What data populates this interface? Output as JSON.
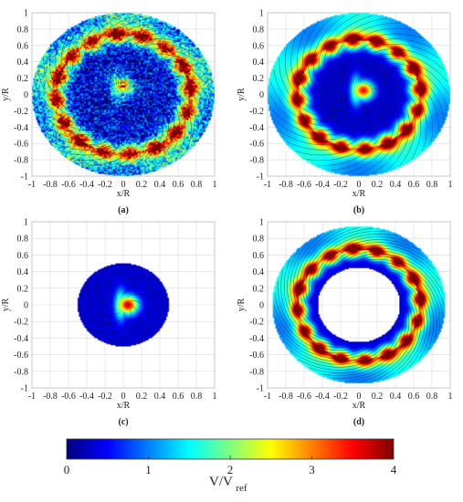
{
  "chart_data": [
    {
      "type": "heatmap",
      "panel": "(a)",
      "xlabel": "x/R",
      "ylabel": "y/R",
      "xlim": [
        -1,
        1
      ],
      "ylim": [
        -1,
        1
      ],
      "xticks": [
        "-1",
        "-0.8",
        "-0.6",
        "-0.4",
        "-0.2",
        "0",
        "0.2",
        "0.4",
        "0.6",
        "0.8",
        "1"
      ],
      "yticks": [
        "-1",
        "-0.8",
        "-0.6",
        "-0.4",
        "-0.2",
        "0",
        "0.2",
        "0.4",
        "0.6",
        "0.8",
        "1"
      ],
      "grid": true,
      "field": {
        "domain_radius": 1.0,
        "ring_radius": 0.72,
        "ring_width": 0.1,
        "ring_peak": 3.6,
        "inner_level": 0.4,
        "noise": true,
        "core_peak": 2.8,
        "core_x": 0.0,
        "core_y": 0.1
      }
    },
    {
      "type": "heatmap",
      "panel": "(b)",
      "xlabel": "x/R",
      "ylabel": "y/R",
      "xlim": [
        -1,
        1
      ],
      "ylim": [
        -1,
        1
      ],
      "xticks": [
        "-1",
        "-0.8",
        "-0.6",
        "-0.4",
        "-0.2",
        "0",
        "0.2",
        "0.4",
        "0.6",
        "0.8",
        "1"
      ],
      "yticks": [
        "-1",
        "-0.8",
        "-0.6",
        "-0.4",
        "-0.2",
        "0",
        "0.2",
        "0.4",
        "0.6",
        "0.8",
        "1"
      ],
      "grid": true,
      "field": {
        "domain_radius": 1.0,
        "ring_radius": 0.66,
        "ring_width": 0.1,
        "ring_peak": 3.8,
        "inner_level": 0.3,
        "noise": false,
        "core_peak": 3.2,
        "core_x": 0.05,
        "core_y": 0.05
      }
    },
    {
      "type": "heatmap",
      "panel": "(c)",
      "xlabel": "x/R",
      "ylabel": "y/R",
      "xlim": [
        -1,
        1
      ],
      "ylim": [
        -1,
        1
      ],
      "xticks": [
        "-1",
        "-0.8",
        "-0.6",
        "-0.4",
        "-0.2",
        "0",
        "0.2",
        "0.4",
        "0.6",
        "0.8",
        "1"
      ],
      "yticks": [
        "-1",
        "-0.8",
        "-0.6",
        "-0.4",
        "-0.2",
        "0",
        "0.2",
        "0.4",
        "0.6",
        "0.8",
        "1"
      ],
      "grid": true,
      "field": {
        "domain_radius": 0.5,
        "ring_radius": 0.0,
        "ring_width": 0.0,
        "ring_peak": 0.0,
        "inner_level": 0.3,
        "noise": false,
        "core_peak": 3.4,
        "core_x": 0.05,
        "core_y": 0.0
      }
    },
    {
      "type": "heatmap",
      "panel": "(d)",
      "xlabel": "x/R",
      "ylabel": "y/R",
      "xlim": [
        -1,
        1
      ],
      "ylim": [
        -1,
        1
      ],
      "xticks": [
        "-1",
        "-0.8",
        "-0.6",
        "-0.4",
        "-0.2",
        "0",
        "0.2",
        "0.4",
        "0.6",
        "0.8",
        "1"
      ],
      "yticks": [
        "-1",
        "-0.8",
        "-0.6",
        "-0.4",
        "-0.2",
        "0",
        "0.2",
        "0.4",
        "0.6",
        "0.8",
        "1"
      ],
      "grid": true,
      "field": {
        "domain_radius": 0.95,
        "hole_radius": 0.45,
        "ring_radius": 0.66,
        "ring_width": 0.09,
        "ring_peak": 3.8,
        "inner_level": 0.3,
        "noise": false,
        "core_peak": 0.0,
        "core_x": 0.0,
        "core_y": 0.0
      }
    }
  ],
  "colorbar": {
    "label_main": "V/V",
    "label_sub": "ref",
    "min": 0,
    "max": 4,
    "ticks": [
      "0",
      "1",
      "2",
      "3",
      "4"
    ],
    "colormap": "jet"
  },
  "colors": {
    "grid": "#d9d9d9",
    "axis": "#4d4d4d",
    "streamline": "#111111"
  }
}
